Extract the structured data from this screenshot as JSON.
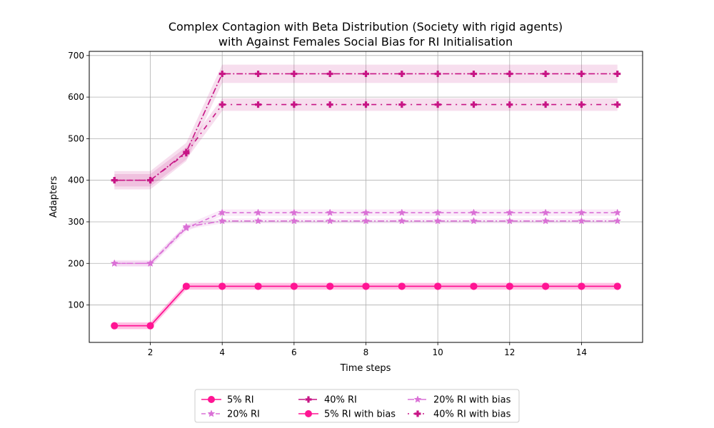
{
  "chart_data": {
    "type": "line",
    "title_line1": "Complex Contagion with Beta Distribution (Society with rigid agents)",
    "title_line2": "with Against Females Social Bias for RI Initialisation",
    "xlabel": "Time steps",
    "ylabel": "Adapters",
    "xlim": [
      0.3,
      15.7
    ],
    "ylim": [
      10,
      710
    ],
    "xticks": [
      2,
      4,
      6,
      8,
      10,
      12,
      14
    ],
    "yticks": [
      100,
      200,
      300,
      400,
      500,
      600,
      700
    ],
    "grid": true,
    "legend_position": "bottom-center",
    "x": [
      1,
      2,
      3,
      4,
      5,
      6,
      7,
      8,
      9,
      10,
      11,
      12,
      13,
      14,
      15
    ],
    "series": [
      {
        "name": "5% RI",
        "color": "#ff1493",
        "dash": "solid",
        "marker": "circle",
        "values": [
          50,
          50,
          145,
          145,
          145,
          145,
          145,
          145,
          145,
          145,
          145,
          145,
          145,
          145,
          145
        ],
        "band": 8
      },
      {
        "name": "20% RI",
        "color": "#da70d6",
        "dash": "dashed",
        "marker": "star",
        "values": [
          200,
          200,
          285,
          322,
          322,
          322,
          322,
          322,
          322,
          322,
          322,
          322,
          322,
          322,
          322
        ],
        "band": 8
      },
      {
        "name": "40% RI",
        "color": "#c71585",
        "dash": "dashdot",
        "marker": "plus",
        "values": [
          400,
          400,
          468,
          656,
          656,
          656,
          656,
          656,
          656,
          656,
          656,
          656,
          656,
          656,
          656
        ],
        "band": 22
      },
      {
        "name": "5% RI with bias",
        "color": "#ff1493",
        "dash": "solid",
        "marker": "circle",
        "values": [
          50,
          50,
          145,
          145,
          145,
          145,
          145,
          145,
          145,
          145,
          145,
          145,
          145,
          145,
          145
        ],
        "band": 8
      },
      {
        "name": "20% RI with bias",
        "color": "#da70d6",
        "dash": "dashdot",
        "marker": "star",
        "values": [
          200,
          200,
          288,
          302,
          302,
          302,
          302,
          302,
          302,
          302,
          302,
          302,
          302,
          302,
          302
        ],
        "band": 6
      },
      {
        "name": "40% RI with bias",
        "color": "#c71585",
        "dash": "dotdash-sparse",
        "marker": "plus",
        "values": [
          400,
          400,
          465,
          582,
          582,
          582,
          582,
          582,
          582,
          582,
          582,
          582,
          582,
          582,
          582
        ],
        "band": 15
      }
    ]
  }
}
